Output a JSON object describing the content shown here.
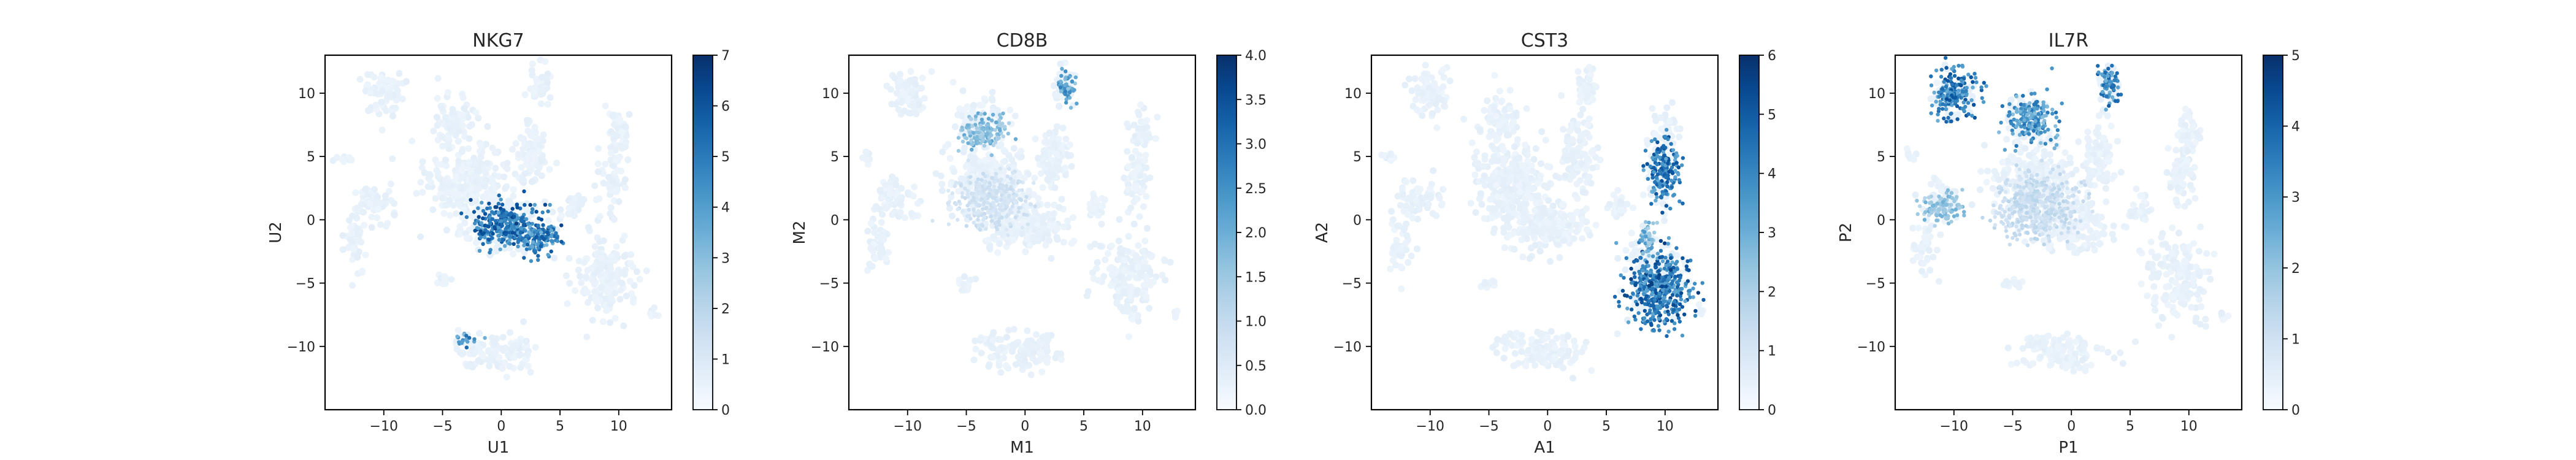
{
  "chart_data": [
    {
      "type": "scatter",
      "title": "NKG7",
      "xlabel": "U1",
      "ylabel": "U2",
      "xlim": [
        -15,
        14.5
      ],
      "ylim": [
        -15,
        13
      ],
      "xticks": [
        -10,
        -5,
        0,
        5,
        10
      ],
      "yticks": [
        10,
        5,
        0,
        -5,
        -10
      ],
      "grid": false,
      "colormap": "Blues",
      "colorbar": {
        "min": 0,
        "max": 7,
        "ticks": [
          "0",
          "1",
          "2",
          "3",
          "4",
          "5",
          "6",
          "7"
        ]
      },
      "high_expression_regions": [
        {
          "x": 0.5,
          "y": -0.5,
          "rx": 3.5,
          "ry": 2.3,
          "level": 0.95
        },
        {
          "x": 3.2,
          "y": -1.5,
          "rx": 2.0,
          "ry": 1.5,
          "level": 0.85
        },
        {
          "x": -3.0,
          "y": -9.5,
          "rx": 1.0,
          "ry": 0.5,
          "level": 0.8
        }
      ]
    },
    {
      "type": "scatter",
      "title": "CD8B",
      "xlabel": "M1",
      "ylabel": "M2",
      "xlim": [
        -15,
        14.5
      ],
      "ylim": [
        -15,
        13
      ],
      "xticks": [
        -10,
        -5,
        0,
        5,
        10
      ],
      "yticks": [
        10,
        5,
        0,
        -5,
        -10
      ],
      "grid": false,
      "colormap": "Blues",
      "colorbar": {
        "min": 0,
        "max": 4,
        "ticks": [
          "0.0",
          "0.5",
          "1.0",
          "1.5",
          "2.0",
          "2.5",
          "3.0",
          "3.5",
          "4.0"
        ]
      },
      "high_expression_regions": [
        {
          "x": -3.5,
          "y": 7.0,
          "rx": 2.2,
          "ry": 1.8,
          "level": 0.55
        },
        {
          "x": 3.5,
          "y": 10.5,
          "rx": 0.9,
          "ry": 1.8,
          "level": 0.7
        },
        {
          "x": -3.0,
          "y": 1.5,
          "rx": 3.5,
          "ry": 2.5,
          "level": 0.25
        }
      ]
    },
    {
      "type": "scatter",
      "title": "CST3",
      "xlabel": "A1",
      "ylabel": "A2",
      "xlim": [
        -15,
        14.5
      ],
      "ylim": [
        -15,
        13
      ],
      "xticks": [
        -10,
        -5,
        0,
        5,
        10
      ],
      "yticks": [
        10,
        5,
        0,
        -5,
        -10
      ],
      "grid": false,
      "colormap": "Blues",
      "colorbar": {
        "min": 0,
        "max": 6,
        "ticks": [
          "0",
          "1",
          "2",
          "3",
          "4",
          "5",
          "6"
        ]
      },
      "high_expression_regions": [
        {
          "x": 9.5,
          "y": -5.5,
          "rx": 3.2,
          "ry": 3.5,
          "level": 0.95
        },
        {
          "x": 10.0,
          "y": 4.0,
          "rx": 1.5,
          "ry": 3.2,
          "level": 0.9
        },
        {
          "x": 8.5,
          "y": -1.5,
          "rx": 0.8,
          "ry": 1.5,
          "level": 0.6
        }
      ]
    },
    {
      "type": "scatter",
      "title": "IL7R",
      "xlabel": "P1",
      "ylabel": "P2",
      "xlim": [
        -15,
        14.5
      ],
      "ylim": [
        -15,
        13
      ],
      "xticks": [
        -10,
        -5,
        0,
        5,
        10
      ],
      "yticks": [
        10,
        5,
        0,
        -5,
        -10
      ],
      "grid": false,
      "colormap": "Blues",
      "colorbar": {
        "min": 0,
        "max": 5,
        "ticks": [
          "0",
          "1",
          "2",
          "3",
          "4",
          "5"
        ]
      },
      "high_expression_regions": [
        {
          "x": -10.0,
          "y": 10.0,
          "rx": 2.2,
          "ry": 2.2,
          "level": 0.9
        },
        {
          "x": -3.5,
          "y": 8.0,
          "rx": 2.3,
          "ry": 2.2,
          "level": 0.75
        },
        {
          "x": 3.2,
          "y": 10.5,
          "rx": 1.0,
          "ry": 2.0,
          "level": 0.85
        },
        {
          "x": -11.0,
          "y": 1.0,
          "rx": 2.0,
          "ry": 1.5,
          "level": 0.5
        },
        {
          "x": -3.0,
          "y": 1.0,
          "rx": 4.0,
          "ry": 3.0,
          "level": 0.3
        }
      ]
    }
  ]
}
